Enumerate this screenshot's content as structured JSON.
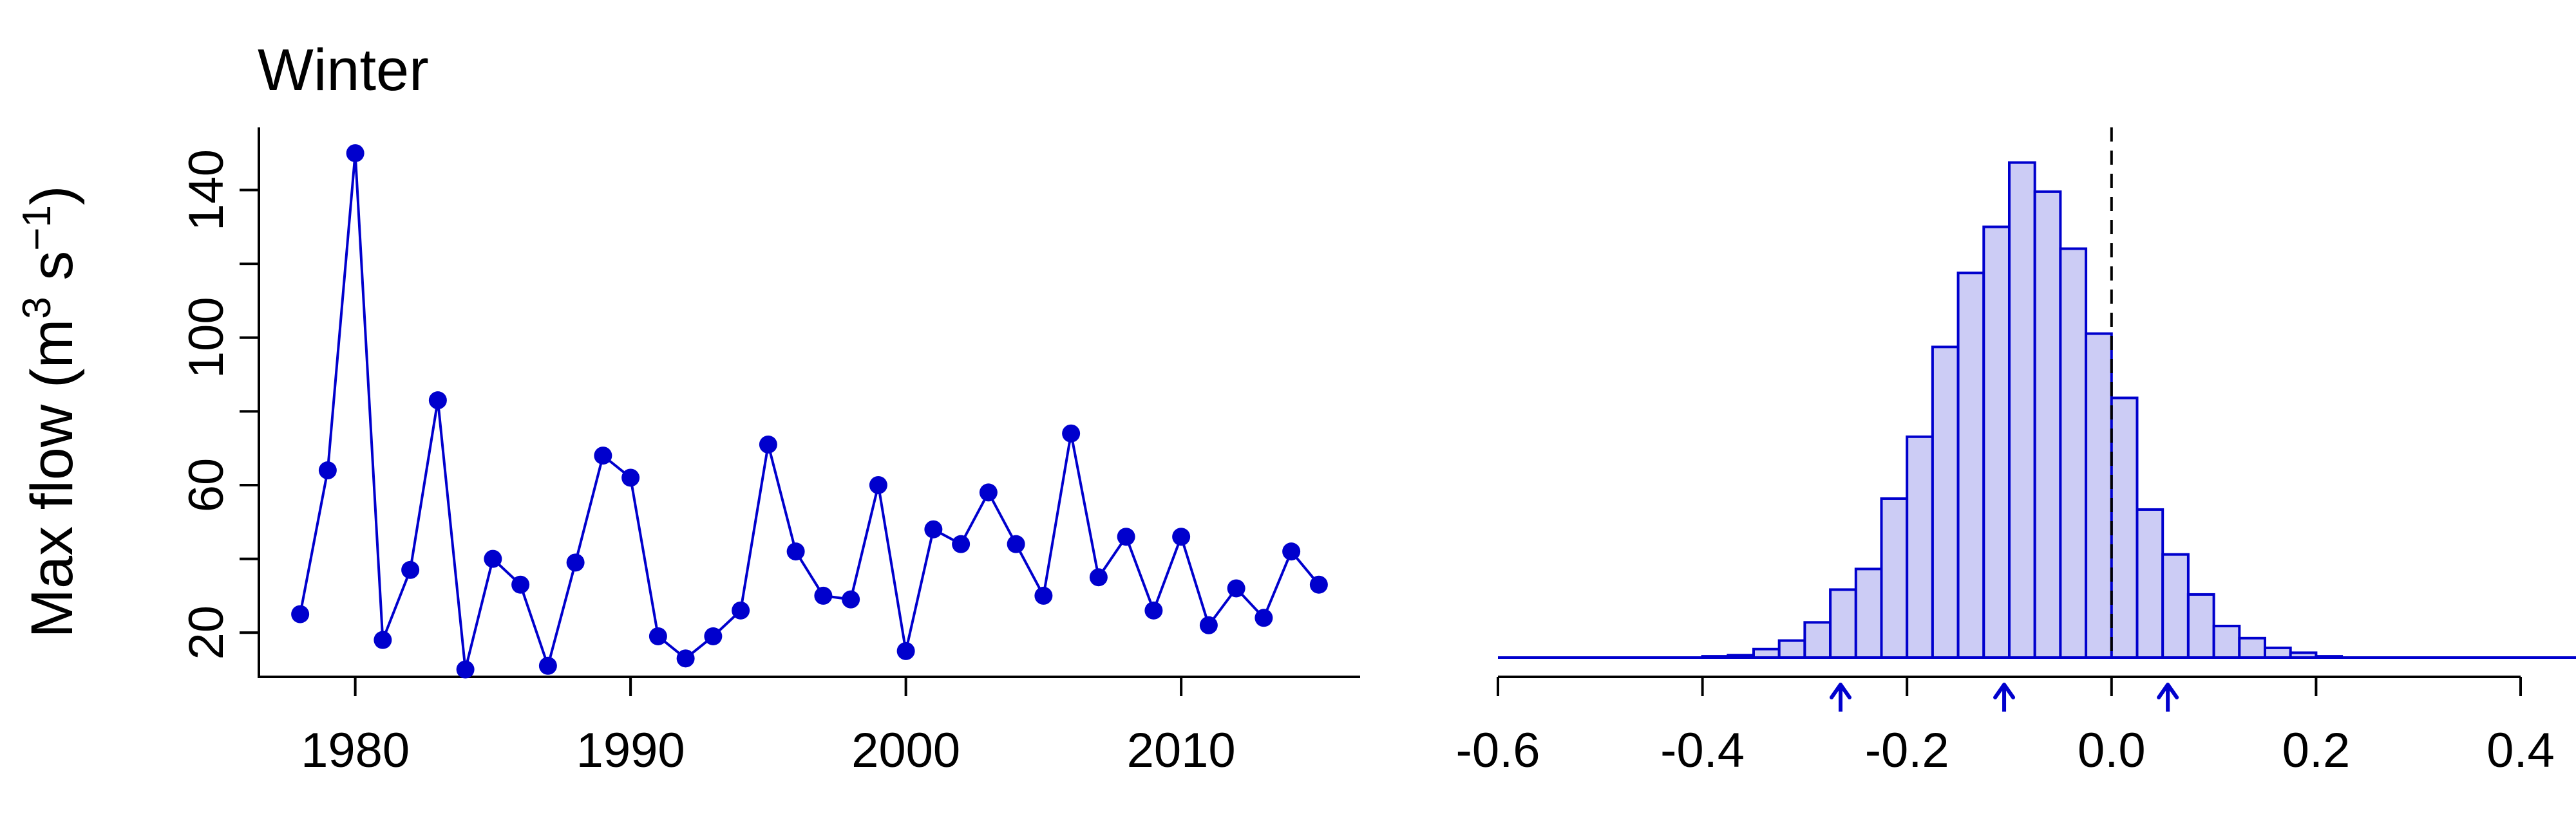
{
  "colors": {
    "series": "#0000CD",
    "hist_fill": "#CCCCF5",
    "hist_edge": "#0000CD",
    "zero_line": "#000000"
  },
  "chart_data": [
    {
      "type": "line",
      "title": "Winter",
      "xlabel": "",
      "ylabel": "Max flow (m",
      "ylabel_sup1": "3",
      "ylabel_mid": " s",
      "ylabel_sup2": "−1",
      "ylabel_end": ")",
      "xlim": [
        1976.5,
        2016.5
      ],
      "ylim": [
        8,
        157
      ],
      "x_ticks": [
        1980,
        1990,
        2000,
        2010
      ],
      "x_tick_labels": [
        "1980",
        "1990",
        "2000",
        "2010"
      ],
      "y_ticks": [
        20,
        40,
        60,
        80,
        100,
        120,
        140
      ],
      "y_tick_labels": [
        "20",
        "",
        "60",
        "",
        "100",
        "",
        "140"
      ],
      "grid": false,
      "marker": "filled-circle",
      "x": [
        1978,
        1979,
        1980,
        1981,
        1982,
        1983,
        1984,
        1985,
        1986,
        1987,
        1988,
        1989,
        1990,
        1991,
        1992,
        1993,
        1994,
        1995,
        1996,
        1997,
        1998,
        1999,
        2000,
        2001,
        2002,
        2003,
        2004,
        2005,
        2006,
        2007,
        2008,
        2009,
        2010,
        2011,
        2012,
        2013,
        2014,
        2015
      ],
      "y": [
        25,
        64,
        150,
        18,
        37,
        83,
        10,
        40,
        33,
        11,
        39,
        68,
        62,
        19,
        13,
        19,
        26,
        71,
        42,
        30,
        29,
        60,
        15,
        48,
        44,
        58,
        44,
        30,
        74,
        35,
        46,
        26,
        46,
        22,
        32,
        24,
        42,
        33
      ]
    },
    {
      "type": "histogram",
      "xlim": [
        -0.6,
        0.5
      ],
      "axis_range": [
        -0.6,
        0.4
      ],
      "x_ticks": [
        -0.6,
        -0.4,
        -0.2,
        0.0,
        0.2,
        0.4
      ],
      "x_tick_labels": [
        "-0.6",
        "-0.4",
        "-0.2",
        "0.0",
        "0.2",
        "0.4"
      ],
      "bin_width": 0.025,
      "bin_start": -0.4,
      "counts": [
        1,
        2,
        7,
        14,
        29,
        56,
        73,
        131,
        182,
        256,
        317,
        355,
        408,
        384,
        337,
        267,
        214,
        122,
        85,
        52,
        26,
        16,
        8,
        4,
        1
      ],
      "count_max": 420,
      "vertical_line": {
        "x": 0.0,
        "style": "dashed"
      },
      "arrows_x": [
        -0.265,
        -0.105,
        0.055
      ],
      "grid": false
    }
  ]
}
